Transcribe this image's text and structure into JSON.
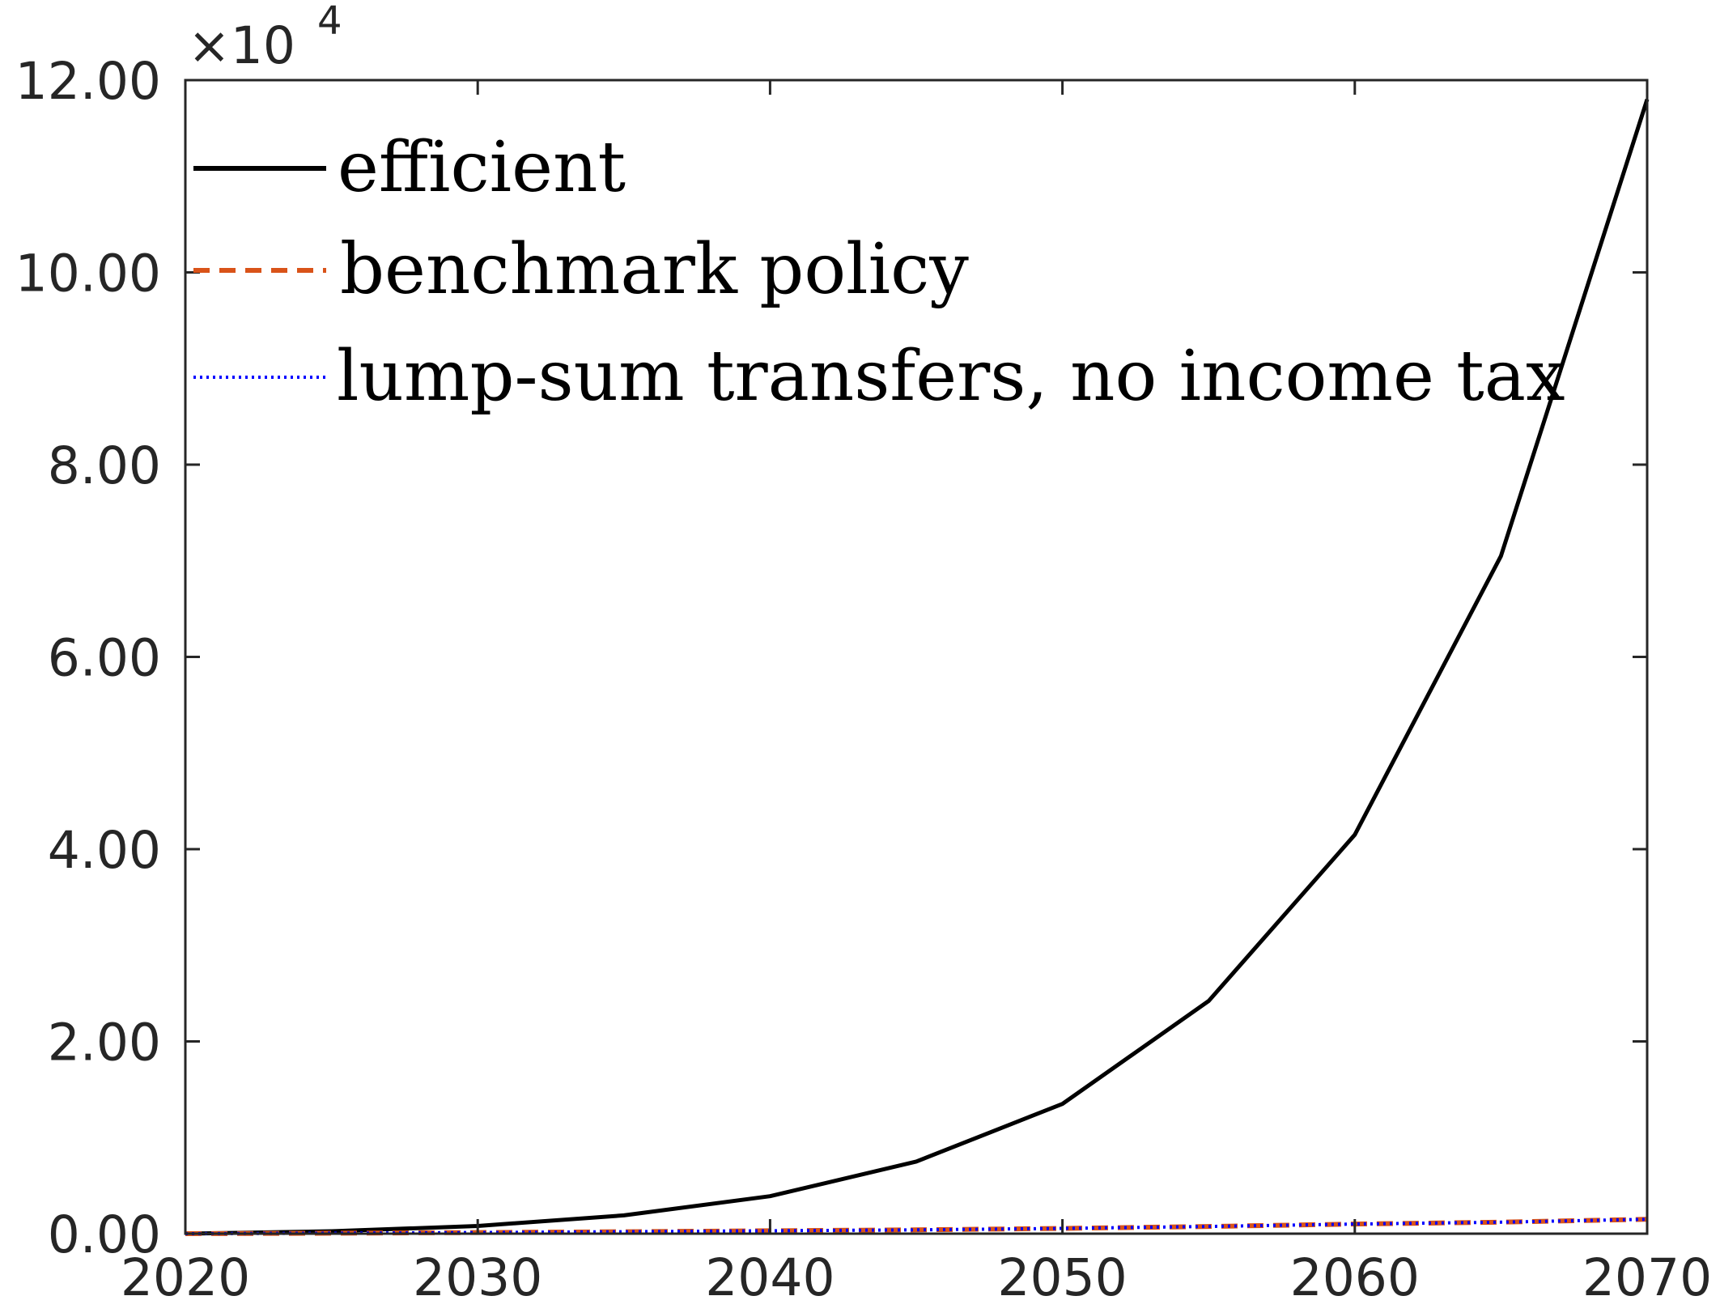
{
  "chart_data": {
    "type": "line",
    "title": "",
    "xlabel": "",
    "ylabel": "",
    "xlim": [
      2020,
      2070
    ],
    "ylim": [
      0,
      120000
    ],
    "x_ticks": [
      2020,
      2030,
      2040,
      2050,
      2060,
      2070
    ],
    "x_tick_labels": [
      "2020",
      "2030",
      "2040",
      "2050",
      "2060",
      "2070"
    ],
    "y_ticks": [
      0,
      20000,
      40000,
      60000,
      80000,
      100000,
      120000
    ],
    "y_tick_labels": [
      "0.00",
      "2.00",
      "4.00",
      "6.00",
      "8.00",
      "10.00",
      "12.00"
    ],
    "y_exponent_base": "×10",
    "y_exponent_power": "4",
    "grid": false,
    "legend_position": "top-left",
    "x": [
      2020,
      2025,
      2030,
      2035,
      2040,
      2045,
      2050,
      2055,
      2060,
      2065,
      2070
    ],
    "series": [
      {
        "name": "efficient",
        "color": "#000000",
        "style": "solid",
        "values": [
          0,
          250,
          800,
          1900,
          3900,
          7500,
          13500,
          24200,
          41500,
          70500,
          118000
        ]
      },
      {
        "name": "benchmark policy",
        "color": "#D95319",
        "style": "dashed",
        "values": [
          0,
          50,
          120,
          200,
          300,
          400,
          550,
          750,
          1000,
          1200,
          1500
        ]
      },
      {
        "name": "lump-sum transfers, no income tax",
        "color": "#0000FF",
        "style": "dotted",
        "values": [
          0,
          50,
          120,
          200,
          300,
          400,
          550,
          750,
          1000,
          1200,
          1500
        ]
      }
    ]
  }
}
